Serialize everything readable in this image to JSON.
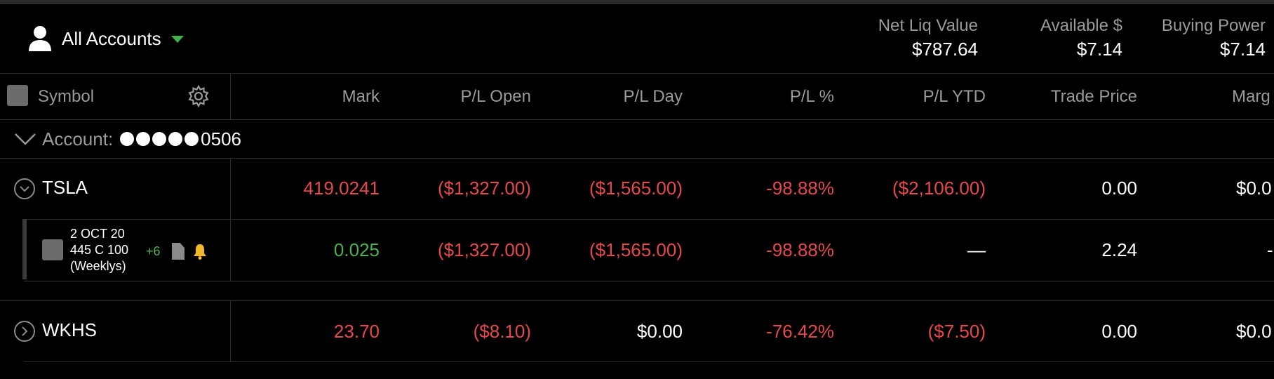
{
  "header": {
    "account_selector": "All Accounts",
    "metrics": [
      {
        "label": "Net Liq Value",
        "value": "$787.64"
      },
      {
        "label": "Available $",
        "value": "$7.14"
      },
      {
        "label": "Buying Power",
        "value": "$7.14"
      }
    ]
  },
  "table": {
    "columns": [
      "Symbol",
      "Mark",
      "P/L Open",
      "P/L Day",
      "P/L %",
      "P/L YTD",
      "Trade Price",
      "Marg"
    ],
    "account_label": "Account:",
    "account_suffix": "0506",
    "rows": [
      {
        "symbol": "TSLA",
        "mark": "419.0241",
        "pl_open": "($1,327.00)",
        "pl_day": "($1,565.00)",
        "pl_pct": "-98.88%",
        "pl_ytd": "($2,106.00)",
        "trade_price": "0.00",
        "margin": "$0.0"
      },
      {
        "symbol_line1": "2 OCT 20",
        "symbol_line2": "445 C 100",
        "symbol_line3": "(Weeklys)",
        "badge": "+6",
        "mark": "0.025",
        "pl_open": "($1,327.00)",
        "pl_day": "($1,565.00)",
        "pl_pct": "-98.88%",
        "pl_ytd": "—",
        "trade_price": "2.24",
        "margin": "-"
      },
      {
        "symbol": "WKHS",
        "mark": "23.70",
        "pl_open": "($8.10)",
        "pl_day": "$0.00",
        "pl_pct": "-76.42%",
        "pl_ytd": "($7.50)",
        "trade_price": "0.00",
        "margin": "$0.0"
      }
    ]
  },
  "colors": {
    "negative": "#e5484d",
    "positive": "#4cb050",
    "accent_caret": "#3fb34a"
  }
}
